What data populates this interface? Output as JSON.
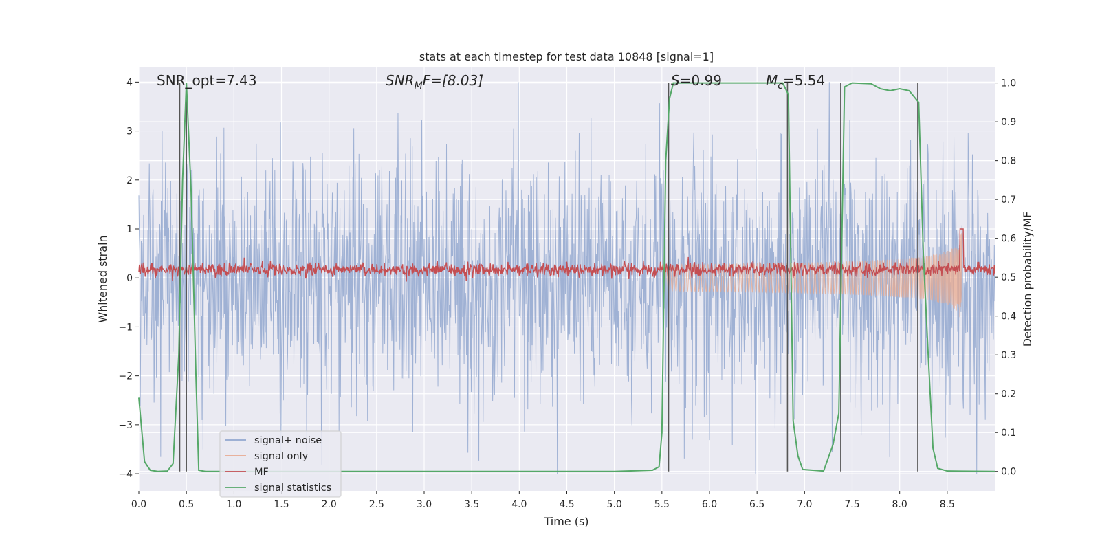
{
  "chart_data": {
    "type": "line",
    "title": "stats at each timestep for test data 10848 [signal=1]",
    "xlabel": "Time (s)",
    "ylabel_left": "Whitened strain",
    "ylabel_right": "Detection probability/MF",
    "xlim": [
      0,
      9.0
    ],
    "ylim_left": [
      -4.35,
      4.3
    ],
    "ylim_right": [
      -0.05,
      1.04
    ],
    "xticks": [
      "0.0",
      "0.5",
      "1.0",
      "1.5",
      "2.0",
      "2.5",
      "3.0",
      "3.5",
      "4.0",
      "4.5",
      "5.0",
      "5.5",
      "6.0",
      "6.5",
      "7.0",
      "7.5",
      "8.0",
      "8.5"
    ],
    "yticks_left": [
      "4",
      "3",
      "2",
      "1",
      "0",
      "−1",
      "−2",
      "−3",
      "−4"
    ],
    "yticks_right": [
      "1.0",
      "0.9",
      "0.8",
      "0.7",
      "0.6",
      "0.5",
      "0.4",
      "0.3",
      "0.2",
      "0.1",
      "0.0"
    ],
    "grid": true,
    "legend_position": "lower-left",
    "annotations": {
      "snr_opt": "SNR_opt=7.43",
      "snr_mf_prefix": "SNR",
      "snr_mf_sub": "M",
      "snr_mf_suffix": "F=[8.03]",
      "s_prefix": "S",
      "s_value": "=0.99",
      "mc_prefix": "M",
      "mc_sub": "c",
      "mc_value": "=5.54"
    },
    "series": [
      {
        "name": "signal+ noise",
        "color": "#92a7cf",
        "axis": "left",
        "kind": "noise",
        "amplitude_range": [
          -4.0,
          4.0
        ]
      },
      {
        "name": "signal only",
        "color": "#e8a98f",
        "axis": "left",
        "kind": "chirp",
        "x_start": 5.5,
        "x_end": 8.65,
        "peak": 0.95
      },
      {
        "name": "MF",
        "color": "#c44e52",
        "axis": "left",
        "kind": "mf",
        "baseline": 0.17,
        "peak_x": 8.65,
        "peak": 1.0
      },
      {
        "name": "signal statistics",
        "color": "#55a868",
        "axis": "right",
        "kind": "line",
        "x": [
          0.0,
          0.06,
          0.12,
          0.2,
          0.3,
          0.36,
          0.42,
          0.46,
          0.5,
          0.55,
          0.6,
          0.63,
          0.7,
          1.0,
          2.0,
          3.0,
          4.0,
          5.0,
          5.4,
          5.47,
          5.5,
          5.54,
          5.58,
          5.62,
          5.7,
          6.0,
          6.5,
          6.77,
          6.83,
          6.88,
          6.93,
          6.98,
          7.2,
          7.3,
          7.36,
          7.42,
          7.5,
          7.7,
          7.8,
          7.9,
          8.0,
          8.1,
          8.2,
          8.25,
          8.3,
          8.35,
          8.4,
          8.5,
          9.0
        ],
        "y": [
          0.19,
          0.025,
          0.003,
          0.0,
          0.001,
          0.02,
          0.3,
          0.75,
          1.0,
          0.72,
          0.25,
          0.003,
          0.0,
          0.0,
          0.0,
          0.0,
          0.0,
          0.0,
          0.003,
          0.012,
          0.1,
          0.8,
          0.96,
          1.0,
          1.0,
          1.0,
          1.0,
          1.0,
          0.97,
          0.13,
          0.04,
          0.005,
          0.001,
          0.07,
          0.15,
          0.99,
          1.0,
          0.998,
          0.985,
          0.98,
          0.985,
          0.98,
          0.95,
          0.55,
          0.3,
          0.06,
          0.008,
          0.001,
          0.0
        ]
      }
    ],
    "vertical_markers": [
      {
        "x": 0.43,
        "ymin": 0.0,
        "ymax": 1.0,
        "axis": "right"
      },
      {
        "x": 0.5,
        "ymin": 0.0,
        "ymax": 1.0,
        "axis": "right"
      },
      {
        "x": 5.57,
        "ymin": 0.0,
        "ymax": 1.0,
        "axis": "right"
      },
      {
        "x": 6.82,
        "ymin": 0.0,
        "ymax": 1.0,
        "axis": "right"
      },
      {
        "x": 7.38,
        "ymin": 0.0,
        "ymax": 1.0,
        "axis": "right"
      },
      {
        "x": 8.19,
        "ymin": 0.0,
        "ymax": 1.0,
        "axis": "right"
      }
    ]
  }
}
